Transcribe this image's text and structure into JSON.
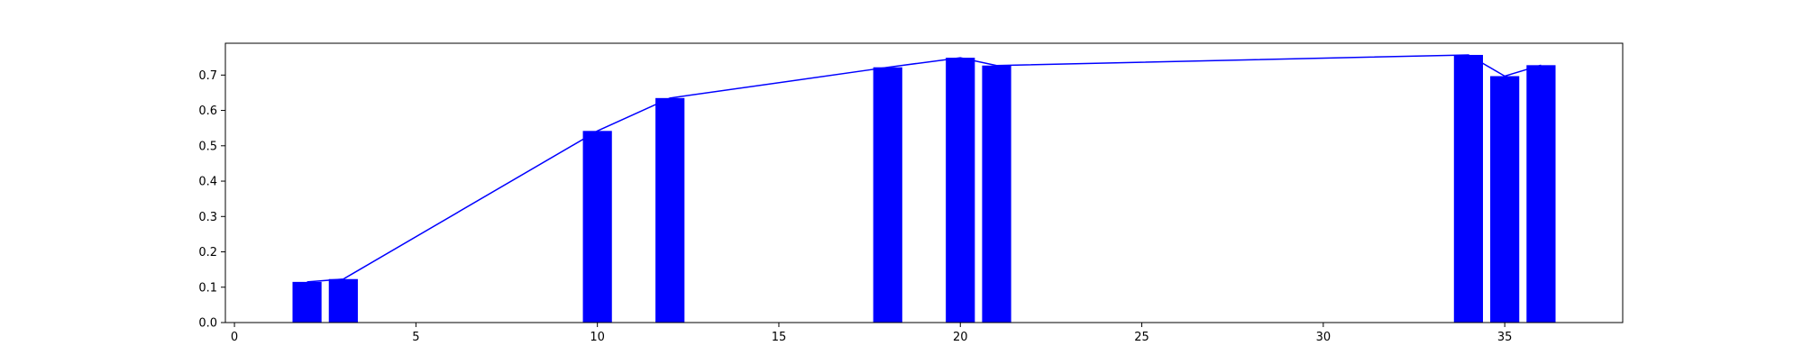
{
  "chart_data": {
    "type": "bar",
    "title": "",
    "xlabel": "",
    "ylabel": "",
    "xlim": [
      -0.25,
      38.25
    ],
    "ylim": [
      0.0,
      0.79
    ],
    "grid": false,
    "legend": "none",
    "bar_width": 0.8,
    "colors": {
      "bars": "#0000ff",
      "line": "#0000ff",
      "axes": "#000000"
    },
    "x_ticks": [
      0,
      5,
      10,
      15,
      20,
      25,
      30,
      35
    ],
    "y_ticks": [
      0.0,
      0.1,
      0.2,
      0.3,
      0.4,
      0.5,
      0.6,
      0.7
    ],
    "x_tick_labels": [
      "0",
      "5",
      "10",
      "15",
      "20",
      "25",
      "30",
      "35"
    ],
    "y_tick_labels": [
      "0.0",
      "0.1",
      "0.2",
      "0.3",
      "0.4",
      "0.5",
      "0.6",
      "0.7"
    ],
    "bars": [
      {
        "x": 2,
        "value": 0.115
      },
      {
        "x": 3,
        "value": 0.123
      },
      {
        "x": 10,
        "value": 0.542
      },
      {
        "x": 12,
        "value": 0.635
      },
      {
        "x": 18,
        "value": 0.722
      },
      {
        "x": 20,
        "value": 0.749
      },
      {
        "x": 21,
        "value": 0.727
      },
      {
        "x": 34,
        "value": 0.757
      },
      {
        "x": 35,
        "value": 0.697
      },
      {
        "x": 36,
        "value": 0.728
      }
    ],
    "line": [
      {
        "x": 2,
        "y": 0.115
      },
      {
        "x": 3,
        "y": 0.123
      },
      {
        "x": 10,
        "y": 0.542
      },
      {
        "x": 12,
        "y": 0.635
      },
      {
        "x": 18,
        "y": 0.722
      },
      {
        "x": 20,
        "y": 0.749
      },
      {
        "x": 21,
        "y": 0.727
      },
      {
        "x": 34,
        "y": 0.757
      },
      {
        "x": 35,
        "y": 0.697
      },
      {
        "x": 36,
        "y": 0.728
      }
    ]
  }
}
